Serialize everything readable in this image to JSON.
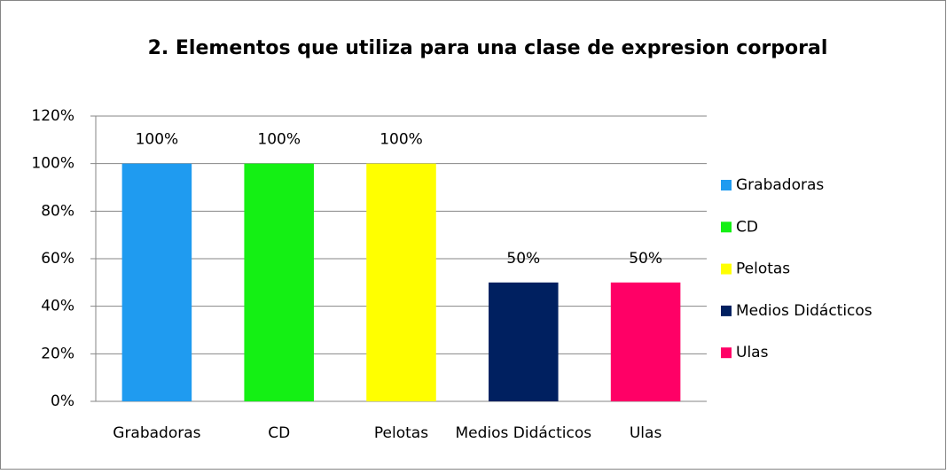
{
  "chart_data": {
    "type": "bar",
    "title": "2.   Elementos que utiliza para una clase de expresion corporal",
    "categories": [
      "Grabadoras",
      "CD",
      "Pelotas",
      "Medios Didácticos",
      "Ulas"
    ],
    "values": [
      100,
      100,
      100,
      50,
      50
    ],
    "value_labels": [
      "100%",
      "100%",
      "100%",
      "50%",
      "50%"
    ],
    "colors": [
      "#1f9bf0",
      "#14f014",
      "#ffff00",
      "#002060",
      "#ff0066"
    ],
    "ylim": [
      0,
      120
    ],
    "yticks": [
      {
        "value": 0,
        "label": "0%"
      },
      {
        "value": 20,
        "label": "20%"
      },
      {
        "value": 40,
        "label": "40%"
      },
      {
        "value": 60,
        "label": "60%"
      },
      {
        "value": 80,
        "label": "80%"
      },
      {
        "value": 100,
        "label": "100%"
      },
      {
        "value": 120,
        "label": "120%"
      }
    ],
    "grid": true,
    "legend": "right"
  }
}
